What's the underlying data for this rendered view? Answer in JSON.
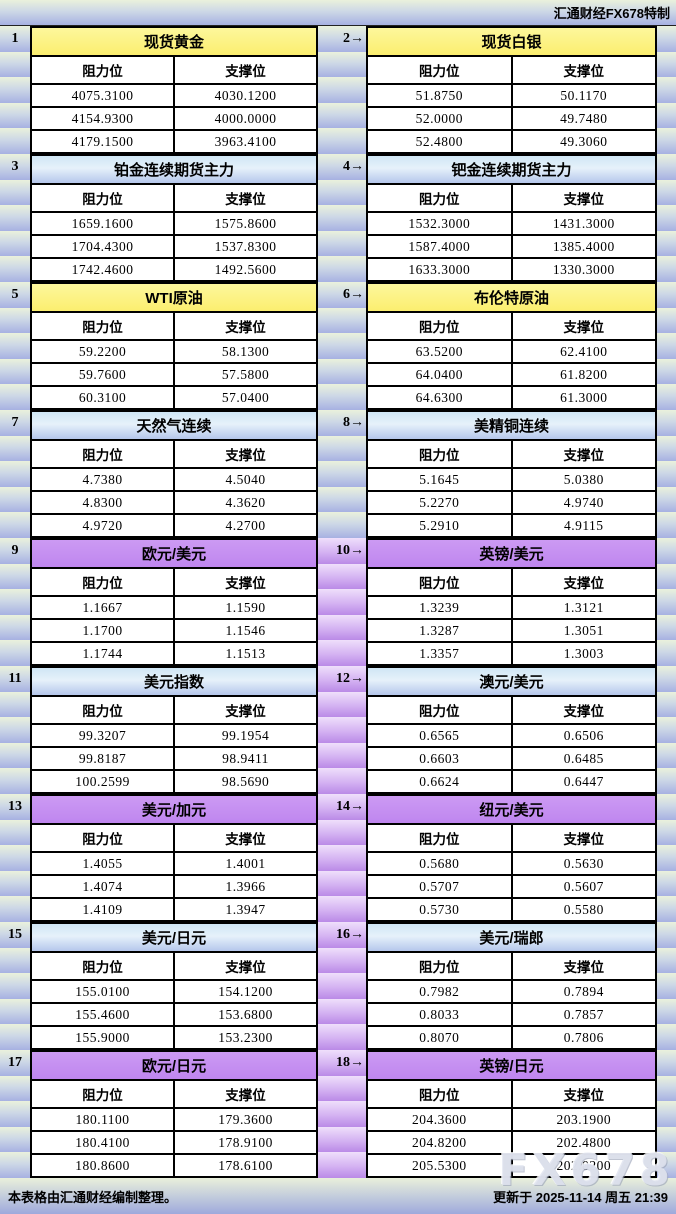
{
  "page": {
    "top_right": "汇通财经FX678特制",
    "footer_left": "本表格由汇通财经编制整理。",
    "footer_right": "更新于 2025-11-14 周五 21:39",
    "watermark": "FX678",
    "arrow": "→"
  },
  "columns": {
    "resistance": "阻力位",
    "support": "支撑位"
  },
  "colors": {
    "header_yellow": "#fbee6f",
    "header_blue": "#b5c7ec",
    "header_purple": "#bf86ef",
    "band_green_top": "#eaf1dc",
    "band_green_bottom": "#a7b1e2",
    "band_purple_top": "#efdffb",
    "band_purple_bottom": "#ba8ae7",
    "border": "#000000",
    "cell_bg": "#ffffff"
  },
  "pairs": [
    {
      "sep_theme": "green",
      "left": {
        "num": "1",
        "title": "现货黄金",
        "theme": "yellow",
        "rows": [
          [
            "4075.3100",
            "4030.1200"
          ],
          [
            "4154.9300",
            "4000.0000"
          ],
          [
            "4179.1500",
            "3963.4100"
          ]
        ]
      },
      "right": {
        "num": "2",
        "title": "现货白银",
        "theme": "yellow",
        "rows": [
          [
            "51.8750",
            "50.1170"
          ],
          [
            "52.0000",
            "49.7480"
          ],
          [
            "52.4800",
            "49.3060"
          ]
        ]
      }
    },
    {
      "sep_theme": "green",
      "left": {
        "num": "3",
        "title": "铂金连续期货主力",
        "theme": "blue",
        "rows": [
          [
            "1659.1600",
            "1575.8600"
          ],
          [
            "1704.4300",
            "1537.8300"
          ],
          [
            "1742.4600",
            "1492.5600"
          ]
        ]
      },
      "right": {
        "num": "4",
        "title": "钯金连续期货主力",
        "theme": "blue",
        "rows": [
          [
            "1532.3000",
            "1431.3000"
          ],
          [
            "1587.4000",
            "1385.4000"
          ],
          [
            "1633.3000",
            "1330.3000"
          ]
        ]
      }
    },
    {
      "sep_theme": "green",
      "left": {
        "num": "5",
        "title": "WTI原油",
        "theme": "yellow",
        "rows": [
          [
            "59.2200",
            "58.1300"
          ],
          [
            "59.7600",
            "57.5800"
          ],
          [
            "60.3100",
            "57.0400"
          ]
        ]
      },
      "right": {
        "num": "6",
        "title": "布伦特原油",
        "theme": "yellow",
        "rows": [
          [
            "63.5200",
            "62.4100"
          ],
          [
            "64.0400",
            "61.8200"
          ],
          [
            "64.6300",
            "61.3000"
          ]
        ]
      }
    },
    {
      "sep_theme": "green",
      "left": {
        "num": "7",
        "title": "天然气连续",
        "theme": "blue",
        "rows": [
          [
            "4.7380",
            "4.5040"
          ],
          [
            "4.8300",
            "4.3620"
          ],
          [
            "4.9720",
            "4.2700"
          ]
        ]
      },
      "right": {
        "num": "8",
        "title": "美精铜连续",
        "theme": "blue",
        "rows": [
          [
            "5.1645",
            "5.0380"
          ],
          [
            "5.2270",
            "4.9740"
          ],
          [
            "5.2910",
            "4.9115"
          ]
        ]
      }
    },
    {
      "sep_theme": "purple",
      "left": {
        "num": "9",
        "title": "欧元/美元",
        "theme": "purple",
        "rows": [
          [
            "1.1667",
            "1.1590"
          ],
          [
            "1.1700",
            "1.1546"
          ],
          [
            "1.1744",
            "1.1513"
          ]
        ]
      },
      "right": {
        "num": "10",
        "title": "英镑/美元",
        "theme": "purple",
        "rows": [
          [
            "1.3239",
            "1.3121"
          ],
          [
            "1.3287",
            "1.3051"
          ],
          [
            "1.3357",
            "1.3003"
          ]
        ]
      }
    },
    {
      "sep_theme": "purple",
      "left": {
        "num": "11",
        "title": "美元指数",
        "theme": "blue",
        "rows": [
          [
            "99.3207",
            "99.1954"
          ],
          [
            "99.8187",
            "98.9411"
          ],
          [
            "100.2599",
            "98.5690"
          ]
        ]
      },
      "right": {
        "num": "12",
        "title": "澳元/美元",
        "theme": "blue",
        "rows": [
          [
            "0.6565",
            "0.6506"
          ],
          [
            "0.6603",
            "0.6485"
          ],
          [
            "0.6624",
            "0.6447"
          ]
        ]
      }
    },
    {
      "sep_theme": "purple",
      "left": {
        "num": "13",
        "title": "美元/加元",
        "theme": "purple",
        "rows": [
          [
            "1.4055",
            "1.4001"
          ],
          [
            "1.4074",
            "1.3966"
          ],
          [
            "1.4109",
            "1.3947"
          ]
        ]
      },
      "right": {
        "num": "14",
        "title": "纽元/美元",
        "theme": "purple",
        "rows": [
          [
            "0.5680",
            "0.5630"
          ],
          [
            "0.5707",
            "0.5607"
          ],
          [
            "0.5730",
            "0.5580"
          ]
        ]
      }
    },
    {
      "sep_theme": "purple",
      "left": {
        "num": "15",
        "title": "美元/日元",
        "theme": "blue",
        "rows": [
          [
            "155.0100",
            "154.1200"
          ],
          [
            "155.4600",
            "153.6800"
          ],
          [
            "155.9000",
            "153.2300"
          ]
        ]
      },
      "right": {
        "num": "16",
        "title": "美元/瑞郎",
        "theme": "blue",
        "rows": [
          [
            "0.7982",
            "0.7894"
          ],
          [
            "0.8033",
            "0.7857"
          ],
          [
            "0.8070",
            "0.7806"
          ]
        ]
      }
    },
    {
      "sep_theme": "purple",
      "left": {
        "num": "17",
        "title": "欧元/日元",
        "theme": "purple",
        "rows": [
          [
            "180.1100",
            "179.3600"
          ],
          [
            "180.4100",
            "178.9100"
          ],
          [
            "180.8600",
            "178.6100"
          ]
        ]
      },
      "right": {
        "num": "18",
        "title": "英镑/日元",
        "theme": "purple",
        "rows": [
          [
            "204.3600",
            "203.1900"
          ],
          [
            "204.8200",
            "202.4800"
          ],
          [
            "205.5300",
            "202.0200"
          ]
        ]
      }
    }
  ]
}
